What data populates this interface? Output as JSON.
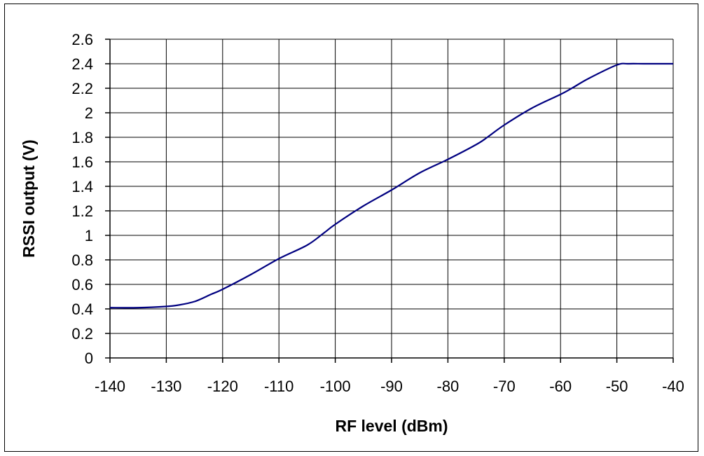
{
  "chart_data": {
    "type": "line",
    "title": "",
    "xlabel": "RF level (dBm)",
    "ylabel": "RSSI output (V)",
    "xlim": [
      -140,
      -40
    ],
    "ylim": [
      0,
      2.6
    ],
    "x_ticks": [
      -140,
      -130,
      -120,
      -110,
      -100,
      -90,
      -80,
      -70,
      -60,
      -50,
      -40
    ],
    "x_tick_labels": [
      "-140",
      "-130",
      "-120",
      "-110",
      "-100",
      "-90",
      "-80",
      "-70",
      "-60",
      "-50",
      "-40"
    ],
    "y_ticks": [
      0,
      0.2,
      0.4,
      0.6,
      0.8,
      1,
      1.2,
      1.4,
      1.6,
      1.8,
      2,
      2.2,
      2.4,
      2.6
    ],
    "y_tick_labels": [
      "0",
      "0.2",
      "0.4",
      "0.6",
      "0.8",
      "1",
      "1.2",
      "1.4",
      "1.6",
      "1.8",
      "2",
      "2.2",
      "2.4",
      "2.6"
    ],
    "grid": true,
    "legend": "none",
    "series": [
      {
        "color": "#000080",
        "x": [
          -140,
          -135,
          -130,
          -128,
          -125,
          -122,
          -120,
          -115,
          -110,
          -105,
          -102,
          -100,
          -95,
          -90,
          -85,
          -80,
          -75,
          -73,
          -70,
          -65,
          -60,
          -58,
          -55,
          -50,
          -48,
          -45,
          -40
        ],
        "y": [
          0.41,
          0.41,
          0.42,
          0.43,
          0.46,
          0.52,
          0.56,
          0.68,
          0.81,
          0.92,
          1.02,
          1.09,
          1.24,
          1.37,
          1.51,
          1.62,
          1.74,
          1.8,
          1.9,
          2.04,
          2.15,
          2.2,
          2.28,
          2.39,
          2.4,
          2.4,
          2.4
        ]
      }
    ]
  }
}
